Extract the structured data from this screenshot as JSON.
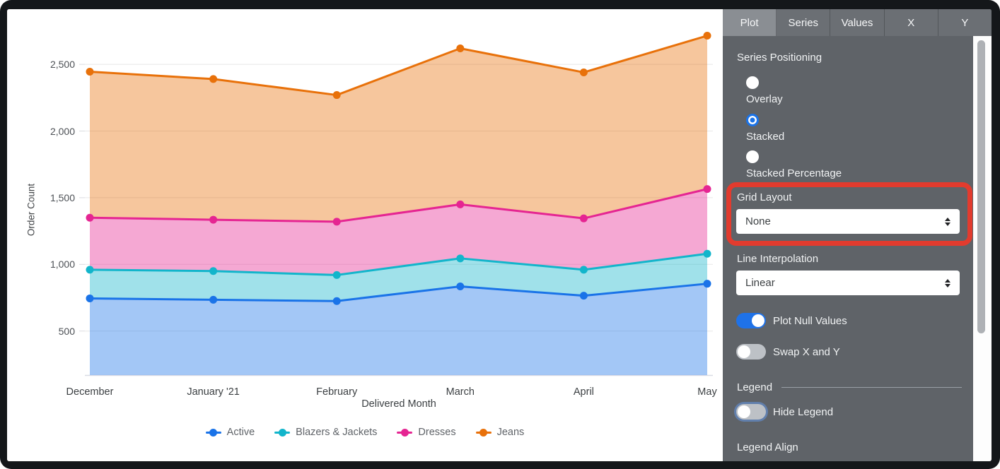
{
  "chart_data": {
    "type": "area",
    "stacking": "stacked",
    "x": [
      "December",
      "January '21",
      "February",
      "March",
      "April",
      "May"
    ],
    "xlabel": "Delivered Month",
    "ylabel": "Order Count",
    "yticks": [
      {
        "value": 500,
        "label": "500"
      },
      {
        "value": 1000,
        "label": "1,000"
      },
      {
        "value": 1500,
        "label": "1,500"
      },
      {
        "value": 2000,
        "label": "2,000"
      },
      {
        "value": 2500,
        "label": "2,500"
      }
    ],
    "ylim_visible": [
      170,
      2845
    ],
    "grid": "horizontal",
    "legend_position": "bottom",
    "series": [
      {
        "name": "Active",
        "color": "#1A73E8",
        "values": [
          745,
          735,
          725,
          835,
          765,
          855
        ],
        "stacked_top": [
          745,
          735,
          725,
          835,
          765,
          855
        ]
      },
      {
        "name": "Blazers & Jackets",
        "color": "#12B5CB",
        "values": [
          215,
          215,
          195,
          210,
          195,
          225
        ],
        "stacked_top": [
          960,
          950,
          920,
          1045,
          960,
          1080
        ]
      },
      {
        "name": "Dresses",
        "color": "#E52592",
        "values": [
          390,
          385,
          400,
          405,
          385,
          485
        ],
        "stacked_top": [
          1350,
          1335,
          1320,
          1450,
          1345,
          1565
        ]
      },
      {
        "name": "Jeans",
        "color": "#E8710A",
        "values": [
          1095,
          1055,
          950,
          1170,
          1095,
          1150
        ],
        "stacked_top": [
          2445,
          2390,
          2270,
          2620,
          2440,
          2715
        ]
      }
    ]
  },
  "panel": {
    "tabs": [
      {
        "label": "Plot",
        "active": true
      },
      {
        "label": "Series",
        "active": false
      },
      {
        "label": "Values",
        "active": false
      },
      {
        "label": "X",
        "active": false
      },
      {
        "label": "Y",
        "active": false
      }
    ],
    "series_positioning": {
      "label": "Series Positioning",
      "options": [
        {
          "label": "Overlay",
          "selected": false
        },
        {
          "label": "Stacked",
          "selected": true
        },
        {
          "label": "Stacked Percentage",
          "selected": false
        }
      ]
    },
    "grid_layout": {
      "label": "Grid Layout",
      "value": "None",
      "highlighted": true
    },
    "line_interpolation": {
      "label": "Line Interpolation",
      "value": "Linear"
    },
    "plot_null_values": {
      "label": "Plot Null Values",
      "on": true
    },
    "swap_x_and_y": {
      "label": "Swap X and Y",
      "on": false
    },
    "legend_section": {
      "label": "Legend"
    },
    "hide_legend": {
      "label": "Hide Legend",
      "on": false,
      "focused": true
    },
    "legend_align": {
      "label": "Legend Align"
    }
  },
  "colors": {
    "accent_blue": "#1A73E8",
    "annotation_red": "#E23B2E",
    "panel_bg": "#5F6368",
    "tab_active_bg": "#8A8E93",
    "gridline": "#E7E7E7",
    "area_fill_opacity": "0.4"
  }
}
